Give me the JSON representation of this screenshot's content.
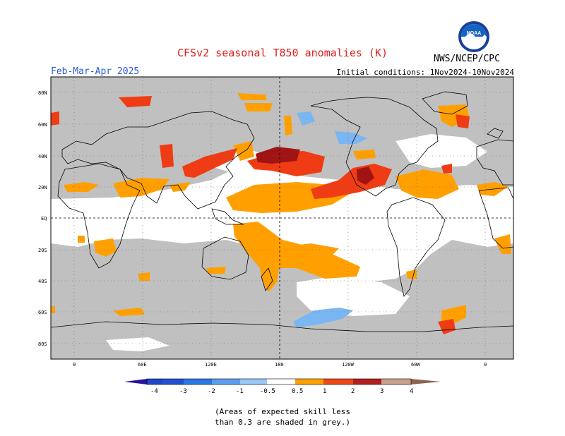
{
  "header": {
    "title": "CFSv2 seasonal T850 anomalies (K)",
    "period": "Feb-Mar-Apr 2025",
    "initial_conditions": "Initial conditions: 1Nov2024-10Nov2024",
    "agency": "NWS/NCEP/CPC",
    "logo_text": "NOAA"
  },
  "map": {
    "lat_labels": [
      "80N",
      "60N",
      "40N",
      "20N",
      "EQ",
      "20S",
      "40S",
      "60S",
      "80S"
    ],
    "lon_labels": [
      "0",
      "60E",
      "120E",
      "180",
      "120W",
      "60W",
      "0"
    ],
    "colors": {
      "grey_low_skill": "#c0c0c0",
      "ocean_white": "#ffffff",
      "orange_0_5_1": "#ffa000",
      "red_1_2": "#f03c14",
      "darkred_2_3": "#a01414",
      "blue_neg": "#7ab6f2"
    }
  },
  "colorbar": {
    "labels": [
      "-4",
      "-3",
      "-2",
      "-1",
      "-0.5",
      "0.5",
      "1",
      "2",
      "3",
      "4"
    ],
    "colors": [
      "#28149b",
      "#1e46c8",
      "#2878e6",
      "#5a9ef0",
      "#96c8fa",
      "#ffffff",
      "#ffa000",
      "#f04614",
      "#b41e1e",
      "#781414",
      "#c8a08c",
      "#8c6450"
    ]
  },
  "note": {
    "line1": "(Areas of expected skill less",
    "line2": "than 0.3 are shaded in grey.)"
  }
}
